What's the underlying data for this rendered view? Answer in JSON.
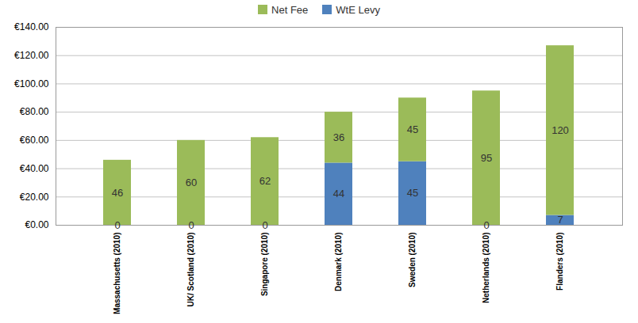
{
  "chart_data": {
    "type": "bar",
    "stacked": true,
    "categories": [
      "Massachusetts (2010)",
      "UK/ Scotland (2010)",
      "Singapore (2010)",
      "Denmark (2010)",
      "Sweden (2010)",
      "Netherlands (2010)",
      "Flanders (2010)"
    ],
    "series": [
      {
        "name": "WtE Levy",
        "color": "#4f81bd",
        "values": [
          0,
          0,
          0,
          44,
          45,
          0,
          7
        ]
      },
      {
        "name": "Net Fee",
        "color": "#9bbb59",
        "values": [
          46,
          60,
          62,
          36,
          45,
          95,
          120
        ]
      }
    ],
    "ylim": [
      0,
      140
    ],
    "yticks": [
      {
        "value": 0,
        "label": "€0.00"
      },
      {
        "value": 20,
        "label": "€20.00"
      },
      {
        "value": 40,
        "label": "€40.00"
      },
      {
        "value": 60,
        "label": "€60.00"
      },
      {
        "value": 80,
        "label": "€80.00"
      },
      {
        "value": 100,
        "label": "€100.00"
      },
      {
        "value": 120,
        "label": "€120.00"
      },
      {
        "value": 140,
        "label": "€140.00"
      }
    ],
    "grid": true,
    "data_labels": true,
    "legend": "top"
  }
}
